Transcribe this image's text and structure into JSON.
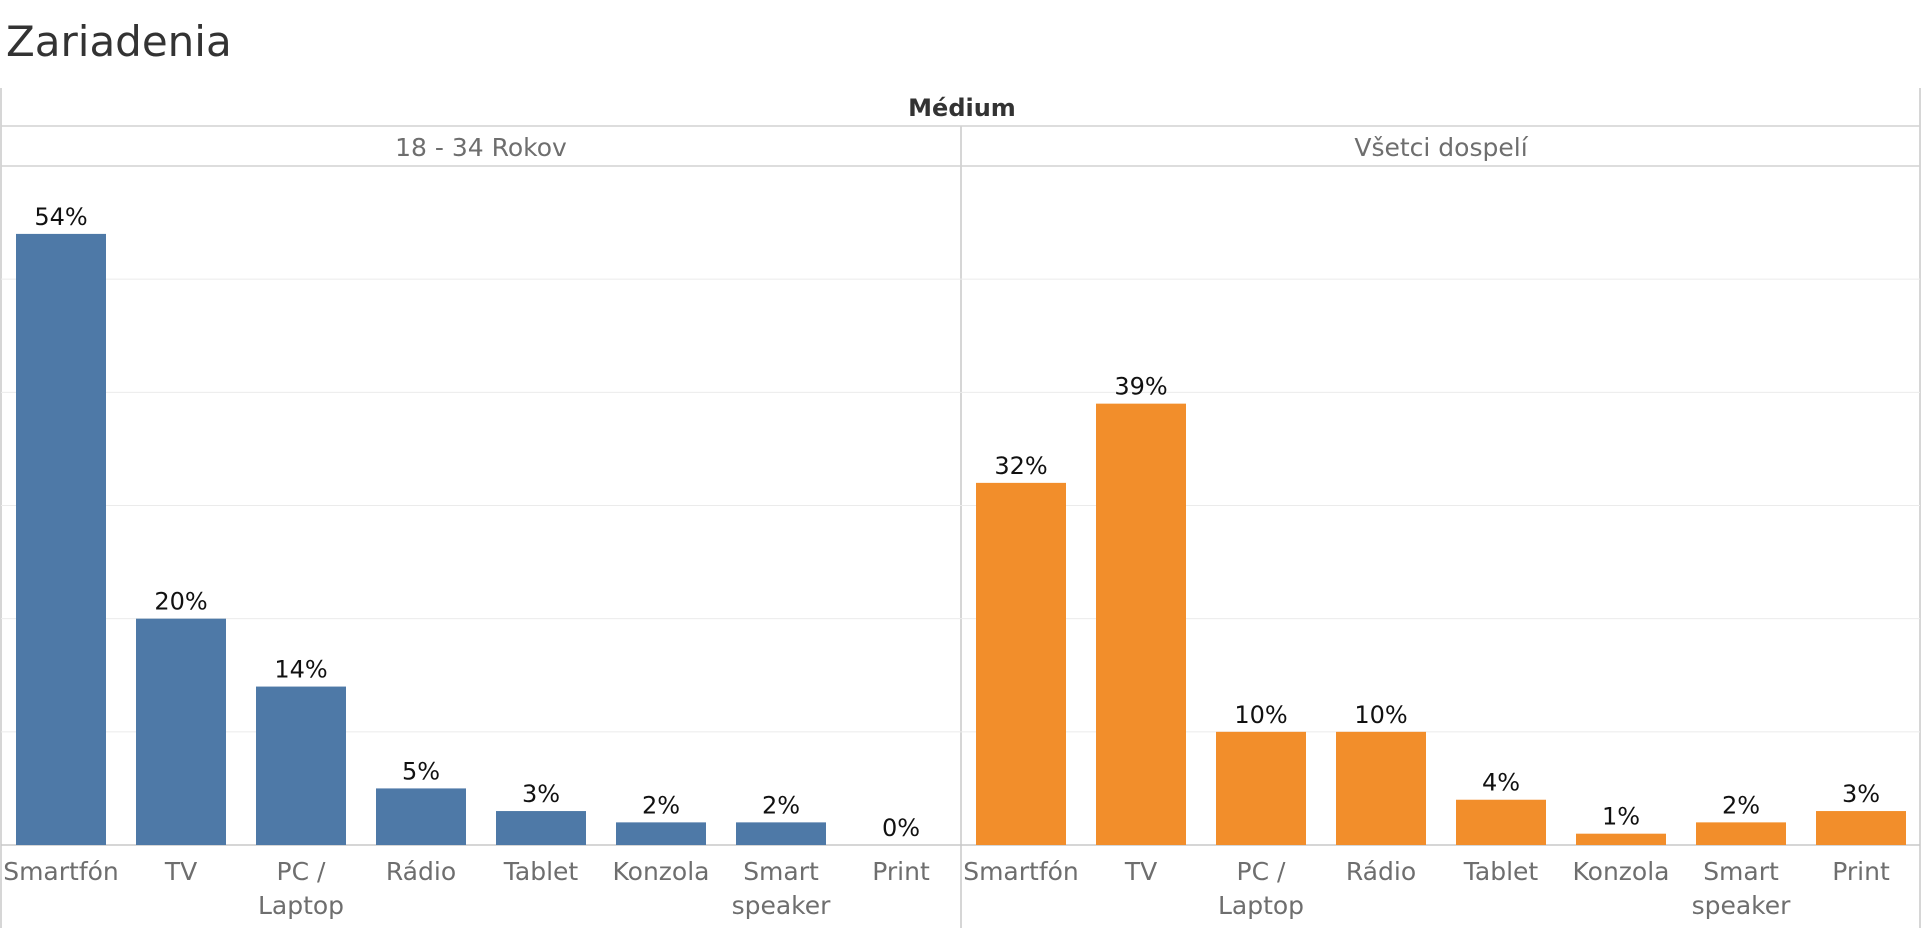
{
  "chart_data": {
    "type": "bar",
    "title": "Zariadenia",
    "column_header": "Médium",
    "categories": [
      "Smartfón",
      "TV",
      "PC / Laptop",
      "Rádio",
      "Tablet",
      "Konzola",
      "Smart speaker",
      "Print"
    ],
    "ylim": [
      0,
      60
    ],
    "grid": true,
    "panels": [
      {
        "name": "18 - 34 Rokov",
        "color": "#4e79a7",
        "values": [
          54,
          20,
          14,
          5,
          3,
          2,
          2,
          0
        ],
        "labels": [
          "54%",
          "20%",
          "14%",
          "5%",
          "3%",
          "2%",
          "2%",
          "0%"
        ]
      },
      {
        "name": "Všetci dospelí",
        "color": "#f28e2b",
        "values": [
          32,
          39,
          10,
          10,
          4,
          1,
          2,
          3
        ],
        "labels": [
          "32%",
          "39%",
          "10%",
          "10%",
          "4%",
          "1%",
          "2%",
          "3%"
        ]
      }
    ]
  }
}
